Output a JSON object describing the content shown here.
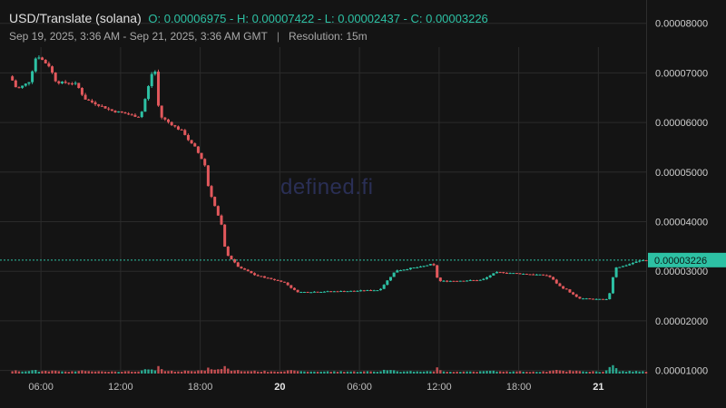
{
  "header": {
    "pair": "USD/Translate (solana)",
    "ohlc": "O: 0.00006975 - H: 0.00007422 - L: 0.00002437 - C: 0.00003226",
    "range": "Sep 19, 2025, 3:36 AM - Sep 21, 2025, 3:36 AM GMT",
    "separator": "|",
    "resolution": "Resolution: 15m"
  },
  "watermark": "defined.fi",
  "colors": {
    "background": "#141414",
    "up": "#2dc1a4",
    "down": "#e2585c",
    "grid": "#2b2b2b",
    "last_price": "#2dc1a4"
  },
  "chart_data": {
    "type": "candlestick",
    "interval": "15m",
    "ylim": [
      1e-05,
      8e-05
    ],
    "y_ticks": [
      {
        "value": 8e-05,
        "label": "0.00008000"
      },
      {
        "value": 7e-05,
        "label": "0.00007000"
      },
      {
        "value": 6e-05,
        "label": "0.00006000"
      },
      {
        "value": 5e-05,
        "label": "0.00005000"
      },
      {
        "value": 4e-05,
        "label": "0.00004000"
      },
      {
        "value": 3e-05,
        "label": "0.00003000"
      },
      {
        "value": 2e-05,
        "label": "0.00002000"
      },
      {
        "value": 1e-05,
        "label": "0.00001000"
      }
    ],
    "x_ticks": [
      {
        "time": "2025-09-19T06:00",
        "label": "06:00",
        "bold": false
      },
      {
        "time": "2025-09-19T12:00",
        "label": "12:00",
        "bold": false
      },
      {
        "time": "2025-09-19T18:00",
        "label": "18:00",
        "bold": false
      },
      {
        "time": "2025-09-20T00:00",
        "label": "20",
        "bold": true
      },
      {
        "time": "2025-09-20T06:00",
        "label": "06:00",
        "bold": false
      },
      {
        "time": "2025-09-20T12:00",
        "label": "12:00",
        "bold": false
      },
      {
        "time": "2025-09-20T18:00",
        "label": "18:00",
        "bold": false
      },
      {
        "time": "2025-09-21T00:00",
        "label": "21",
        "bold": true
      }
    ],
    "last_price": {
      "value": 3.226e-05,
      "label": "0.00003226"
    },
    "anchors": [
      {
        "time": "2025-09-19T03:36",
        "price": 6.93e-05
      },
      {
        "time": "2025-09-19T04:15",
        "price": 6.68e-05
      },
      {
        "time": "2025-09-19T05:00",
        "price": 6.8e-05
      },
      {
        "time": "2025-09-19T05:45",
        "price": 7.35e-05
      },
      {
        "time": "2025-09-19T06:30",
        "price": 7.16e-05
      },
      {
        "time": "2025-09-19T07:15",
        "price": 6.81e-05
      },
      {
        "time": "2025-09-19T08:30",
        "price": 6.79e-05
      },
      {
        "time": "2025-09-19T09:30",
        "price": 6.45e-05
      },
      {
        "time": "2025-09-19T11:30",
        "price": 6.22e-05
      },
      {
        "time": "2025-09-19T13:30",
        "price": 6.12e-05
      },
      {
        "time": "2025-09-19T14:30",
        "price": 7.13e-05
      },
      {
        "time": "2025-09-19T15:00",
        "price": 6.12e-05
      },
      {
        "time": "2025-09-19T16:30",
        "price": 5.84e-05
      },
      {
        "time": "2025-09-19T17:30",
        "price": 5.55e-05
      },
      {
        "time": "2025-09-19T18:15",
        "price": 5.2e-05
      },
      {
        "time": "2025-09-19T18:45",
        "price": 4.59e-05
      },
      {
        "time": "2025-09-19T19:30",
        "price": 4e-05
      },
      {
        "time": "2025-09-19T20:00",
        "price": 3.35e-05
      },
      {
        "time": "2025-09-19T21:00",
        "price": 3.05e-05
      },
      {
        "time": "2025-09-19T22:30",
        "price": 2.9e-05
      },
      {
        "time": "2025-09-20T00:00",
        "price": 2.8e-05
      },
      {
        "time": "2025-09-20T01:30",
        "price": 2.58e-05
      },
      {
        "time": "2025-09-20T05:00",
        "price": 2.6e-05
      },
      {
        "time": "2025-09-20T07:30",
        "price": 2.62e-05
      },
      {
        "time": "2025-09-20T08:45",
        "price": 3.02e-05
      },
      {
        "time": "2025-09-20T10:30",
        "price": 3.08e-05
      },
      {
        "time": "2025-09-20T11:30",
        "price": 3.15e-05
      },
      {
        "time": "2025-09-20T12:00",
        "price": 2.8e-05
      },
      {
        "time": "2025-09-20T15:00",
        "price": 2.82e-05
      },
      {
        "time": "2025-09-20T16:30",
        "price": 2.98e-05
      },
      {
        "time": "2025-09-20T20:00",
        "price": 2.92e-05
      },
      {
        "time": "2025-09-20T21:30",
        "price": 2.65e-05
      },
      {
        "time": "2025-09-20T22:30",
        "price": 2.45e-05
      },
      {
        "time": "2025-09-21T00:45",
        "price": 2.43e-05
      },
      {
        "time": "2025-09-21T01:15",
        "price": 3.08e-05
      },
      {
        "time": "2025-09-21T03:36",
        "price": 3.226e-05
      }
    ],
    "volume_spikes": [
      {
        "time": "2025-09-19T14:30",
        "volume": 0.25
      },
      {
        "time": "2025-09-19T15:00",
        "volume": 0.22
      },
      {
        "time": "2025-09-19T18:45",
        "volume": 0.15
      },
      {
        "time": "2025-09-21T00:45",
        "volume": 0.9
      },
      {
        "time": "2025-09-21T01:45",
        "volume": 0.2
      }
    ]
  }
}
